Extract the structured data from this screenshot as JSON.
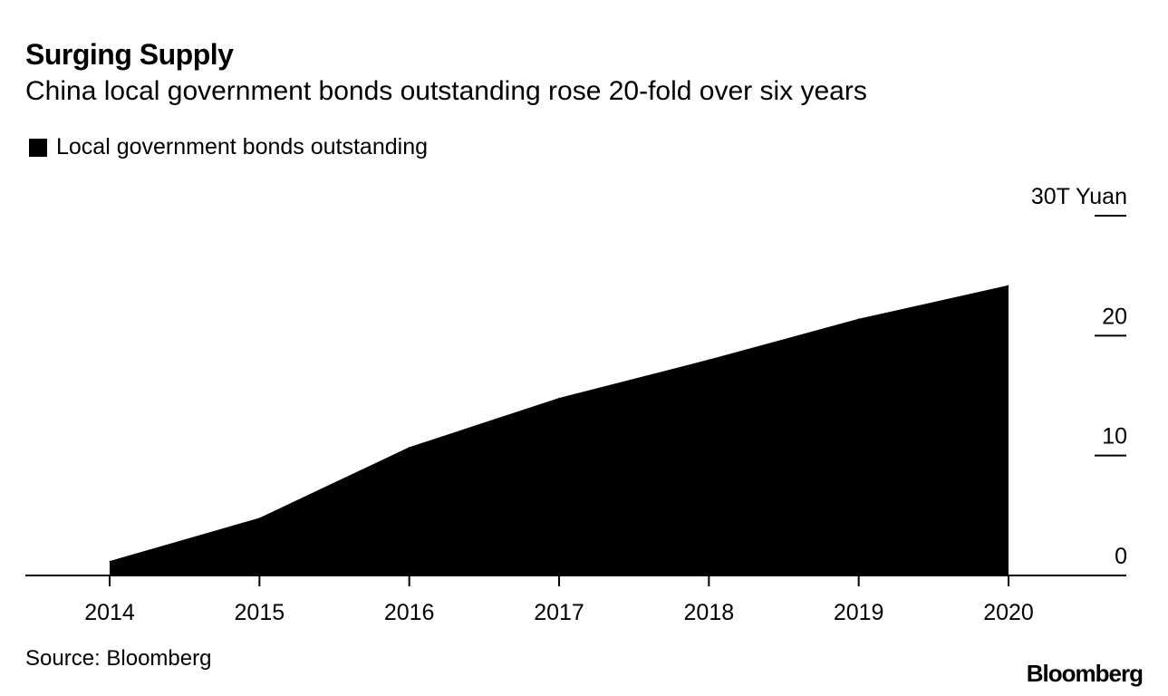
{
  "chart_data": {
    "type": "area",
    "title": "Surging Supply",
    "subtitle": "China local government bonds outstanding rose 20-fold over six years",
    "legend": [
      "Local government bonds outstanding"
    ],
    "x": [
      "2014",
      "2015",
      "2016",
      "2017",
      "2018",
      "2019",
      "2020"
    ],
    "series": [
      {
        "name": "Local government bonds outstanding",
        "values": [
          1.2,
          4.8,
          10.7,
          14.8,
          18.0,
          21.4,
          24.2
        ]
      }
    ],
    "y_ticks": [
      {
        "value": 0,
        "label": "0"
      },
      {
        "value": 10,
        "label": "10"
      },
      {
        "value": 20,
        "label": "20"
      },
      {
        "value": 30,
        "label": "30T Yuan"
      }
    ],
    "ylim": [
      0,
      30
    ],
    "xlabel": "",
    "ylabel": "T Yuan",
    "source": "Source: Bloomberg",
    "brand": "Bloomberg"
  }
}
